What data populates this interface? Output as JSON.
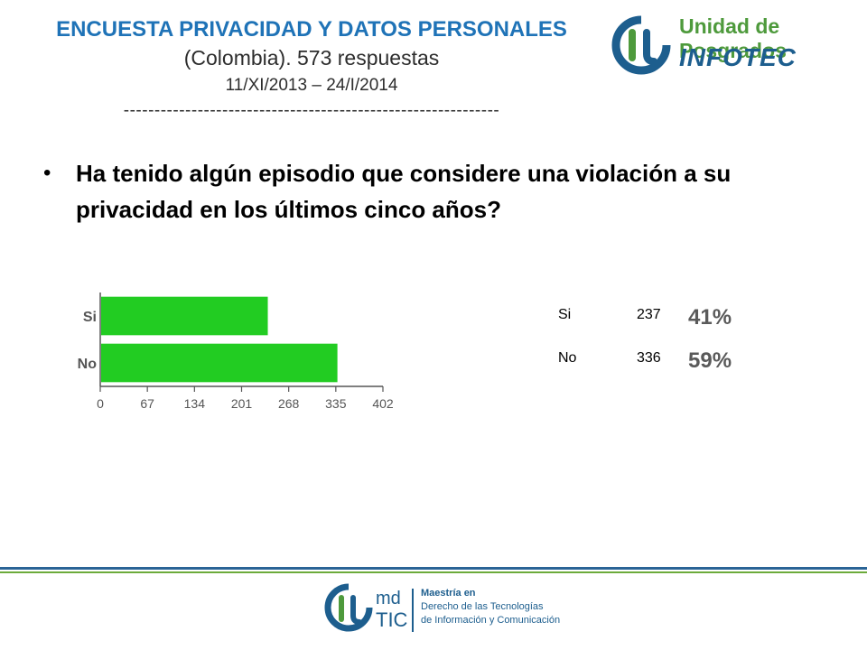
{
  "header": {
    "title": "ENCUESTA PRIVACIDAD Y DATOS PERSONALES",
    "subtitle": "(Colombia). 573 respuestas",
    "dates": "11/XI/2013 – 24/I/2014",
    "dashes": "-------------------------------------------------------------"
  },
  "logo_top": {
    "line1": "Unidad de Posgrados",
    "line2": "INFOTEC"
  },
  "question": "Ha tenido algún episodio que considere una violación a su privacidad en los últimos cinco años?",
  "stats": [
    {
      "label": "Si",
      "count": "237",
      "percent": "41%"
    },
    {
      "label": "No",
      "count": "336",
      "percent": "59%"
    }
  ],
  "logo_bottom": {
    "md": "md",
    "tic": "TIC",
    "line1": "Maestría en",
    "line2": "Derecho de las Tecnologías",
    "line3": "de Información y Comunicación"
  },
  "colors": {
    "title": "#1f73b7",
    "bar": "#22cc22",
    "green_logo": "#4e9a3c",
    "blue_logo": "#1d5e8e"
  },
  "chart_data": {
    "type": "bar",
    "orientation": "horizontal",
    "categories": [
      "Si",
      "No"
    ],
    "values": [
      237,
      336
    ],
    "xticks": [
      "0",
      "67",
      "134",
      "201",
      "268",
      "335",
      "402"
    ],
    "xlim": [
      0,
      402
    ],
    "grid": false
  }
}
